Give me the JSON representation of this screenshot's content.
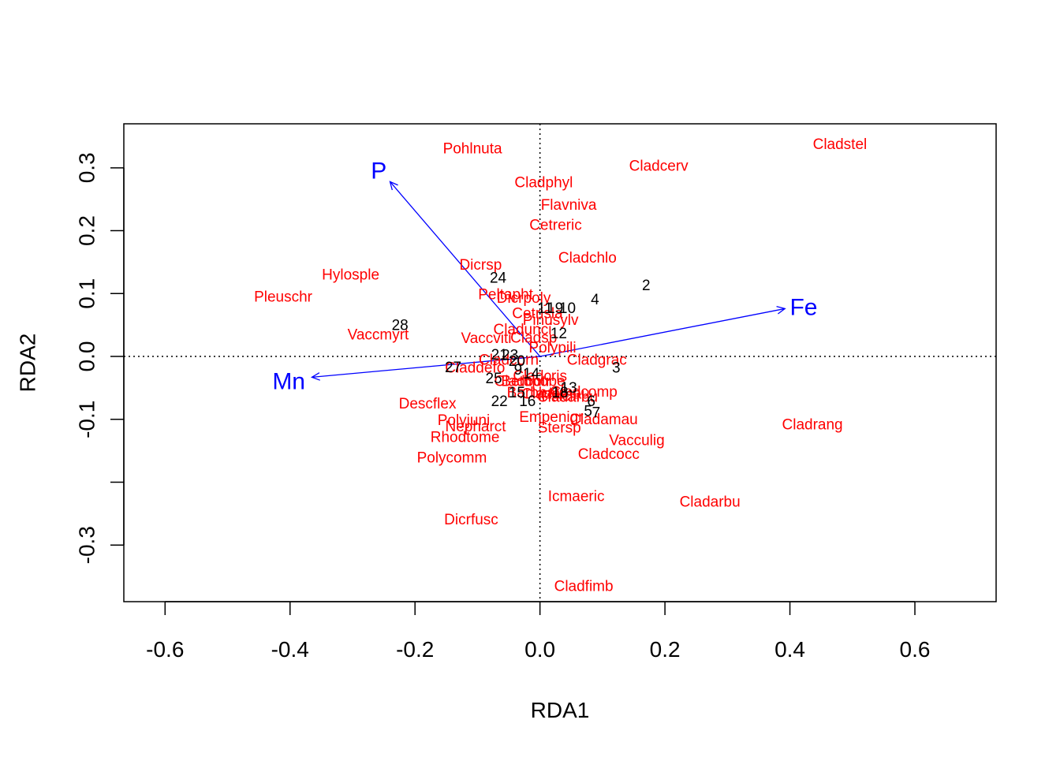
{
  "chart_data": {
    "type": "scatter",
    "title": "",
    "xlabel": "RDA1",
    "ylabel": "RDA2",
    "xlim": [
      -0.666,
      0.73
    ],
    "ylim": [
      -0.39,
      0.37
    ],
    "x_ticks": [
      -0.6,
      -0.4,
      -0.2,
      0.0,
      0.2,
      0.4,
      0.6
    ],
    "x_tick_labels": [
      "-0.6",
      "-0.4",
      "-0.2",
      "0.0",
      "0.2",
      "0.4",
      "0.6"
    ],
    "y_ticks": [
      -0.3,
      -0.2,
      -0.1,
      0.0,
      0.1,
      0.2,
      0.3
    ],
    "y_tick_labels": [
      "-0.3",
      "",
      "-0.1",
      "0.0",
      "0.1",
      "0.2",
      "0.3"
    ],
    "reference_lines": {
      "x": 0,
      "y": 0,
      "style": "dotted"
    },
    "colors": {
      "species": "#ff0000",
      "sites": "#000000",
      "biplot": "#0000ff",
      "axes": "#000000"
    },
    "species": [
      {
        "name": "Pohlnuta",
        "x": -0.108,
        "y": 0.33
      },
      {
        "name": "Cladstel",
        "x": 0.48,
        "y": 0.337
      },
      {
        "name": "Cladcerv",
        "x": 0.19,
        "y": 0.302
      },
      {
        "name": "Cladphyl",
        "x": 0.006,
        "y": 0.276
      },
      {
        "name": "Flavniva",
        "x": 0.046,
        "y": 0.24
      },
      {
        "name": "Cetreric",
        "x": 0.025,
        "y": 0.208
      },
      {
        "name": "Cladchlo",
        "x": 0.076,
        "y": 0.156
      },
      {
        "name": "Dicrsp",
        "x": -0.095,
        "y": 0.145
      },
      {
        "name": "Hylosple",
        "x": -0.303,
        "y": 0.129
      },
      {
        "name": "Pleuschr",
        "x": -0.411,
        "y": 0.094
      },
      {
        "name": "Peltapht",
        "x": -0.055,
        "y": 0.098
      },
      {
        "name": "Dicrpoly",
        "x": -0.026,
        "y": 0.092
      },
      {
        "name": "Cetrisla",
        "x": -0.004,
        "y": 0.068
      },
      {
        "name": "Pinusylv",
        "x": 0.017,
        "y": 0.057
      },
      {
        "name": "Vaccmyrt",
        "x": -0.259,
        "y": 0.034
      },
      {
        "name": "Cladunci",
        "x": -0.028,
        "y": 0.042
      },
      {
        "name": "Vaccviti",
        "x": -0.086,
        "y": 0.028
      },
      {
        "name": "Cladsp",
        "x": -0.01,
        "y": 0.029
      },
      {
        "name": "Polypili",
        "x": 0.02,
        "y": 0.013
      },
      {
        "name": "Cladgrac",
        "x": 0.091,
        "y": -0.006
      },
      {
        "name": "Cladcorn",
        "x": -0.05,
        "y": -0.006
      },
      {
        "name": "Claddefo",
        "x": -0.104,
        "y": -0.019
      },
      {
        "name": "Cladbotr",
        "x": -0.028,
        "y": -0.04
      },
      {
        "name": "Betupube",
        "x": -0.011,
        "y": -0.04
      },
      {
        "name": "Cladcris",
        "x": 0.0,
        "y": -0.032
      },
      {
        "name": "Cladamau",
        "x": 0.025,
        "y": -0.06
      },
      {
        "name": "Barbhatc",
        "x": -0.005,
        "y": -0.058
      },
      {
        "name": "Ptilcili",
        "x": 0.033,
        "y": -0.064
      },
      {
        "name": "Cladcoomp",
        "x": 0.07,
        "y": -0.057
      },
      {
        "name": "Cladarbu_small",
        "x": 0.044,
        "y": -0.065
      },
      {
        "name": "Descflex",
        "x": -0.18,
        "y": -0.076
      },
      {
        "name": "Polyjuni",
        "x": -0.122,
        "y": -0.102
      },
      {
        "name": "Nepharct",
        "x": -0.103,
        "y": -0.112
      },
      {
        "name": "Empenigr",
        "x": 0.018,
        "y": -0.097
      },
      {
        "name": "Cladamau2",
        "x": 0.102,
        "y": -0.101
      },
      {
        "name": "Stersp",
        "x": 0.031,
        "y": -0.114
      },
      {
        "name": "Rhodtome",
        "x": -0.12,
        "y": -0.129
      },
      {
        "name": "Vacculig",
        "x": 0.155,
        "y": -0.134
      },
      {
        "name": "Cladrang",
        "x": 0.436,
        "y": -0.109
      },
      {
        "name": "Polycomm",
        "x": -0.141,
        "y": -0.162
      },
      {
        "name": "Cladcocc",
        "x": 0.11,
        "y": -0.156
      },
      {
        "name": "Icmaeric",
        "x": 0.058,
        "y": -0.223
      },
      {
        "name": "Cladarbu",
        "x": 0.272,
        "y": -0.232
      },
      {
        "name": "Dicrfusc",
        "x": -0.11,
        "y": -0.26
      },
      {
        "name": "Cladfimb",
        "x": 0.07,
        "y": -0.366
      }
    ],
    "species_labels": {
      "Pohlnuta": "Pohlnuta",
      "Cladstel": "Cladstel",
      "Cladcerv": "Cladcerv",
      "Cladphyl": "Cladphyl",
      "Flavniva": "Flavniva",
      "Cetreric": "Cetreric",
      "Cladchlo": "Cladchlo",
      "Dicrsp": "Dicrsp",
      "Hylosple": "Hylosple",
      "Pleuschr": "Pleuschr",
      "Peltapht": "Peltapht",
      "Dicrpoly": "Dicrpoly",
      "Cetrisla": "Cetrisla",
      "Pinusylv": "Pinusylv",
      "Vaccmyrt": "Vaccmyrt",
      "Cladunci": "Cladunci",
      "Vaccviti": "Vaccviti",
      "Cladsp": "Cladsp",
      "Polypili": "Polypili",
      "Cladgrac": "Cladgrac",
      "Cladcorn": "Cladcorn",
      "Claddefo": "Claddefo",
      "Cladbotr": "Cladbotr",
      "Betupube": "Betupube",
      "Cladcris": "Cladcris",
      "Cladamau": "Cladamau",
      "Barbhatc": "Barbhatc",
      "Ptilcili": "Ptilcili",
      "Cladcoomp": "Cladcomp",
      "Cladarbu_small": "Cladarbu",
      "Descflex": "Descflex",
      "Polyjuni": "Polyjuni",
      "Nepharct": "Nepharct",
      "Empenigr": "Empenigr",
      "Cladamau2": "Cladamau",
      "Stersp": "Stersp",
      "Rhodtome": "Rhodtome",
      "Vacculig": "Vacculig",
      "Cladrang": "Cladrang",
      "Polycomm": "Polycomm",
      "Cladcocc": "Cladcocc",
      "Icmaeric": "Icmaeric",
      "Cladarbu": "Cladarbu",
      "Dicrfusc": "Dicrfusc",
      "Cladfimb": "Cladfimb"
    },
    "sites": [
      {
        "name": "2",
        "x": 0.17,
        "y": 0.112
      },
      {
        "name": "4",
        "x": 0.088,
        "y": 0.09
      },
      {
        "name": "24",
        "x": -0.067,
        "y": 0.124
      },
      {
        "name": "28",
        "x": -0.224,
        "y": 0.049
      },
      {
        "name": "11",
        "x": 0.008,
        "y": 0.076
      },
      {
        "name": "19",
        "x": 0.024,
        "y": 0.076
      },
      {
        "name": "10",
        "x": 0.044,
        "y": 0.076
      },
      {
        "name": "12",
        "x": 0.03,
        "y": 0.036
      },
      {
        "name": "3",
        "x": 0.122,
        "y": -0.019
      },
      {
        "name": "27",
        "x": -0.139,
        "y": -0.018
      },
      {
        "name": "21",
        "x": -0.065,
        "y": 0.002
      },
      {
        "name": "23",
        "x": -0.048,
        "y": 0.001
      },
      {
        "name": "20",
        "x": -0.037,
        "y": -0.008
      },
      {
        "name": "9",
        "x": -0.035,
        "y": -0.022
      },
      {
        "name": "14",
        "x": -0.014,
        "y": -0.028
      },
      {
        "name": "25",
        "x": -0.074,
        "y": -0.036
      },
      {
        "name": "15",
        "x": -0.037,
        "y": -0.058
      },
      {
        "name": "18",
        "x": 0.032,
        "y": -0.058
      },
      {
        "name": "13",
        "x": 0.046,
        "y": -0.051
      },
      {
        "name": "22",
        "x": -0.065,
        "y": -0.072
      },
      {
        "name": "16",
        "x": -0.02,
        "y": -0.072
      },
      {
        "name": "6",
        "x": 0.082,
        "y": -0.072
      },
      {
        "name": "5",
        "x": 0.077,
        "y": -0.088
      },
      {
        "name": "7",
        "x": 0.09,
        "y": -0.09
      }
    ],
    "biplot": [
      {
        "name": "P",
        "x": -0.24,
        "y": 0.278,
        "label_x": -0.258,
        "label_y": 0.295
      },
      {
        "name": "Fe",
        "x": 0.392,
        "y": 0.076,
        "label_x": 0.422,
        "label_y": 0.078
      },
      {
        "name": "Mn",
        "x": -0.365,
        "y": -0.033,
        "label_x": -0.402,
        "label_y": -0.04
      }
    ]
  }
}
